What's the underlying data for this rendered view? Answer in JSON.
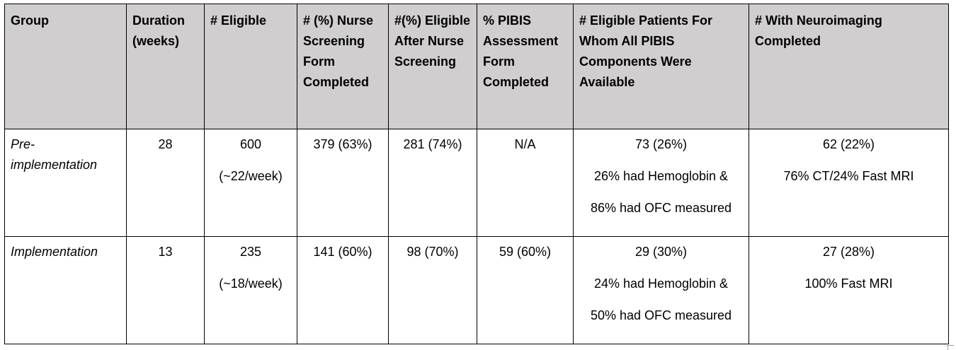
{
  "table": {
    "headers": [
      "Group",
      "Duration (weeks)",
      "# Eligible",
      "# (%) Nurse Screening Form Completed",
      "#(%) Eligible After Nurse Screening",
      "% PIBIS Assessment Form Completed",
      "# Eligible Patients For Whom All PIBIS Components Were Available",
      "# With Neuroimaging Completed"
    ],
    "rows": [
      {
        "group": "Pre-implementation",
        "duration": "28",
        "eligible": "600",
        "eligible_rate": "(~22/week)",
        "nurse_screening": "379 (63%)",
        "eligible_after_screening": "281 (74%)",
        "pibis_form": "N/A",
        "pibis_all": "73 (26%)",
        "pibis_hemoglobin": "26% had Hemoglobin &",
        "pibis_ofc": "86% had OFC measured",
        "neuroimaging": "62 (22%)",
        "neuroimaging_detail": "76% CT/24% Fast MRI"
      },
      {
        "group": "Implementation",
        "duration": "13",
        "eligible": "235",
        "eligible_rate": "(~18/week)",
        "nurse_screening": "141 (60%)",
        "eligible_after_screening": "98 (70%)",
        "pibis_form": "59 (60%)",
        "pibis_all": "29 (30%)",
        "pibis_hemoglobin": "24% had Hemoglobin &",
        "pibis_ofc": "50% had OFC measured",
        "neuroimaging": "27 (28%)",
        "neuroimaging_detail": "100% Fast MRI"
      }
    ]
  }
}
